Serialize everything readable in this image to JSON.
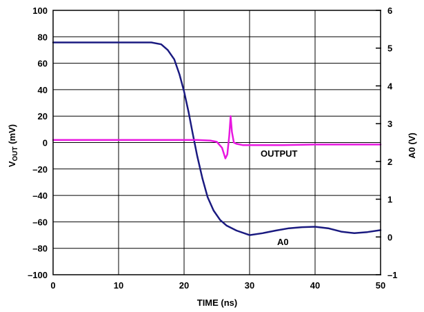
{
  "chart_data": {
    "type": "line",
    "xlabel": "TIME (ns)",
    "ylabel_left": {
      "main": "V",
      "sub": "OUT",
      "rest": " (mV)"
    },
    "ylabel_right": "A0 (V)",
    "xlim": [
      0,
      50
    ],
    "ylim_left": [
      -100,
      100
    ],
    "ylim_right": [
      -1,
      6
    ],
    "x_ticks": [
      "0",
      "10",
      "20",
      "30",
      "40",
      "50"
    ],
    "y_left_ticks": [
      "100",
      "80",
      "60",
      "40",
      "20",
      "0",
      "–20",
      "–40",
      "–60",
      "–80",
      "–100"
    ],
    "y_right_ticks": [
      "6",
      "5",
      "4",
      "3",
      "2",
      "1",
      "0",
      "–1"
    ],
    "grid": true,
    "series": [
      {
        "name": "A0",
        "axis": "right",
        "color": "#1a1a80",
        "x": [
          0,
          5,
          10,
          15,
          16.5,
          17.5,
          18.5,
          19.3,
          20,
          20.7,
          21.3,
          22,
          22.8,
          23.6,
          24.5,
          25.5,
          26.5,
          28,
          30,
          32,
          34,
          36,
          38,
          40,
          42,
          44,
          46,
          48,
          50
        ],
        "y": [
          5.15,
          5.15,
          5.15,
          5.15,
          5.1,
          4.95,
          4.7,
          4.3,
          3.85,
          3.3,
          2.75,
          2.15,
          1.55,
          1.05,
          0.7,
          0.45,
          0.3,
          0.17,
          0.05,
          0.1,
          0.17,
          0.23,
          0.26,
          0.27,
          0.23,
          0.14,
          0.1,
          0.13,
          0.18
        ]
      },
      {
        "name": "OUTPUT",
        "axis": "left",
        "color": "#e817e0",
        "x": [
          0,
          5,
          10,
          15,
          20,
          22,
          24,
          25,
          25.8,
          26.3,
          26.6,
          26.9,
          27.1,
          27.3,
          27.6,
          28,
          29,
          30,
          35,
          40,
          45,
          50
        ],
        "y": [
          2,
          2,
          2,
          2,
          2,
          2,
          1.5,
          0.5,
          -4,
          -12,
          -9,
          5,
          20,
          8,
          0,
          -1,
          -2,
          -2,
          -2,
          -1.5,
          -1.5,
          -1.5
        ]
      }
    ]
  }
}
